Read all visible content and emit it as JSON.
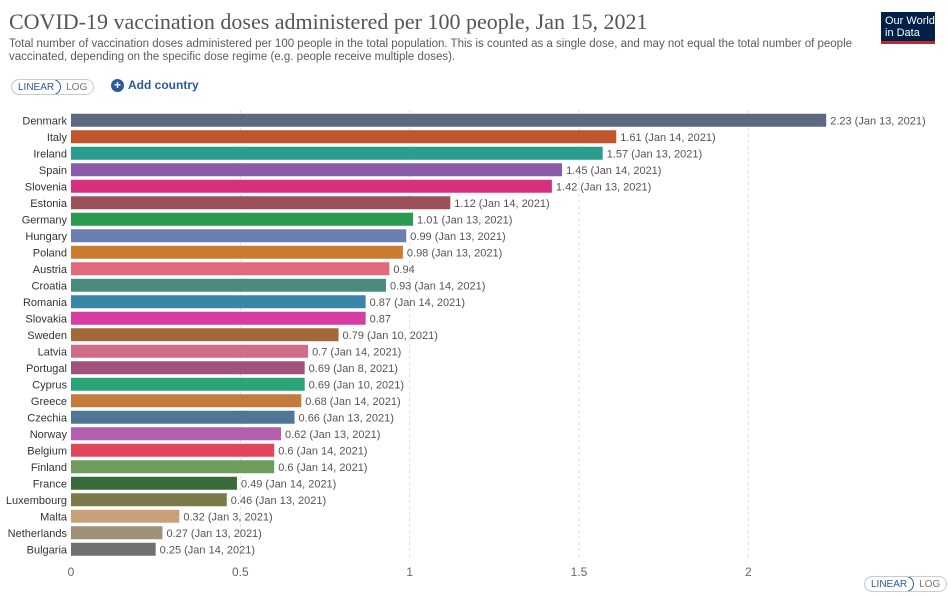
{
  "header": {
    "title": "COVID-19 vaccination doses administered per 100 people, Jan 15, 2021",
    "subtitle": "Total number of vaccination doses administered per 100 people in the total population. This is counted as a single dose, and may not equal the total number of people vaccinated, depending on the specific dose regime (e.g. people receive multiple doses).",
    "logo_line1": "Our World",
    "logo_line2": "in Data"
  },
  "controls": {
    "top_linear": "LINEAR",
    "top_log": "LOG",
    "add_country": "Add country",
    "bottom_linear": "LINEAR",
    "bottom_log": "LOG"
  },
  "chart_data": {
    "type": "bar",
    "orientation": "horizontal",
    "xlim": [
      0,
      2.25
    ],
    "x_ticks": [
      0,
      0.5,
      1,
      1.5,
      2
    ],
    "x_tick_labels": [
      "0",
      "0.5",
      "1",
      "1.5",
      "2"
    ],
    "grid": "vertical dashed",
    "categories": [
      "Denmark",
      "Italy",
      "Ireland",
      "Spain",
      "Slovenia",
      "Estonia",
      "Germany",
      "Hungary",
      "Poland",
      "Austria",
      "Croatia",
      "Romania",
      "Slovakia",
      "Sweden",
      "Latvia",
      "Portugal",
      "Cyprus",
      "Greece",
      "Czechia",
      "Norway",
      "Belgium",
      "Finland",
      "France",
      "Luxembourg",
      "Malta",
      "Netherlands",
      "Bulgaria"
    ],
    "values": [
      2.23,
      1.61,
      1.57,
      1.45,
      1.42,
      1.12,
      1.01,
      0.99,
      0.98,
      0.94,
      0.93,
      0.87,
      0.87,
      0.79,
      0.7,
      0.69,
      0.69,
      0.68,
      0.66,
      0.62,
      0.6,
      0.6,
      0.49,
      0.46,
      0.32,
      0.27,
      0.25
    ],
    "value_labels": [
      "2.23 (Jan 13, 2021)",
      "1.61 (Jan 14, 2021)",
      "1.57 (Jan 13, 2021)",
      "1.45 (Jan 14, 2021)",
      "1.42 (Jan 13, 2021)",
      "1.12 (Jan 14, 2021)",
      "1.01 (Jan 13, 2021)",
      "0.99 (Jan 13, 2021)",
      "0.98 (Jan 13, 2021)",
      "0.94",
      "0.93 (Jan 14, 2021)",
      "0.87 (Jan 14, 2021)",
      "0.87",
      "0.79 (Jan 10, 2021)",
      "0.7 (Jan 14, 2021)",
      "0.69 (Jan 8, 2021)",
      "0.69 (Jan 10, 2021)",
      "0.68 (Jan 14, 2021)",
      "0.66 (Jan 13, 2021)",
      "0.62 (Jan 13, 2021)",
      "0.6 (Jan 14, 2021)",
      "0.6 (Jan 14, 2021)",
      "0.49 (Jan 14, 2021)",
      "0.46 (Jan 13, 2021)",
      "0.32 (Jan 3, 2021)",
      "0.27 (Jan 13, 2021)",
      "0.25 (Jan 14, 2021)"
    ],
    "colors": [
      "#5b6a80",
      "#c0552c",
      "#2a9d8f",
      "#8a5aab",
      "#d6307f",
      "#9c5058",
      "#2a9a4f",
      "#6b7fb3",
      "#cc7a2e",
      "#e06a7a",
      "#4a8c7d",
      "#3a86a8",
      "#d63ca3",
      "#a4683c",
      "#d06c8a",
      "#a0527a",
      "#2aa57a",
      "#c47a3a",
      "#4f7696",
      "#b35fb0",
      "#e0475a",
      "#6f9c5a",
      "#3a6a3a",
      "#7a7a4a",
      "#c8a07a",
      "#a0907a",
      "#707070"
    ]
  }
}
